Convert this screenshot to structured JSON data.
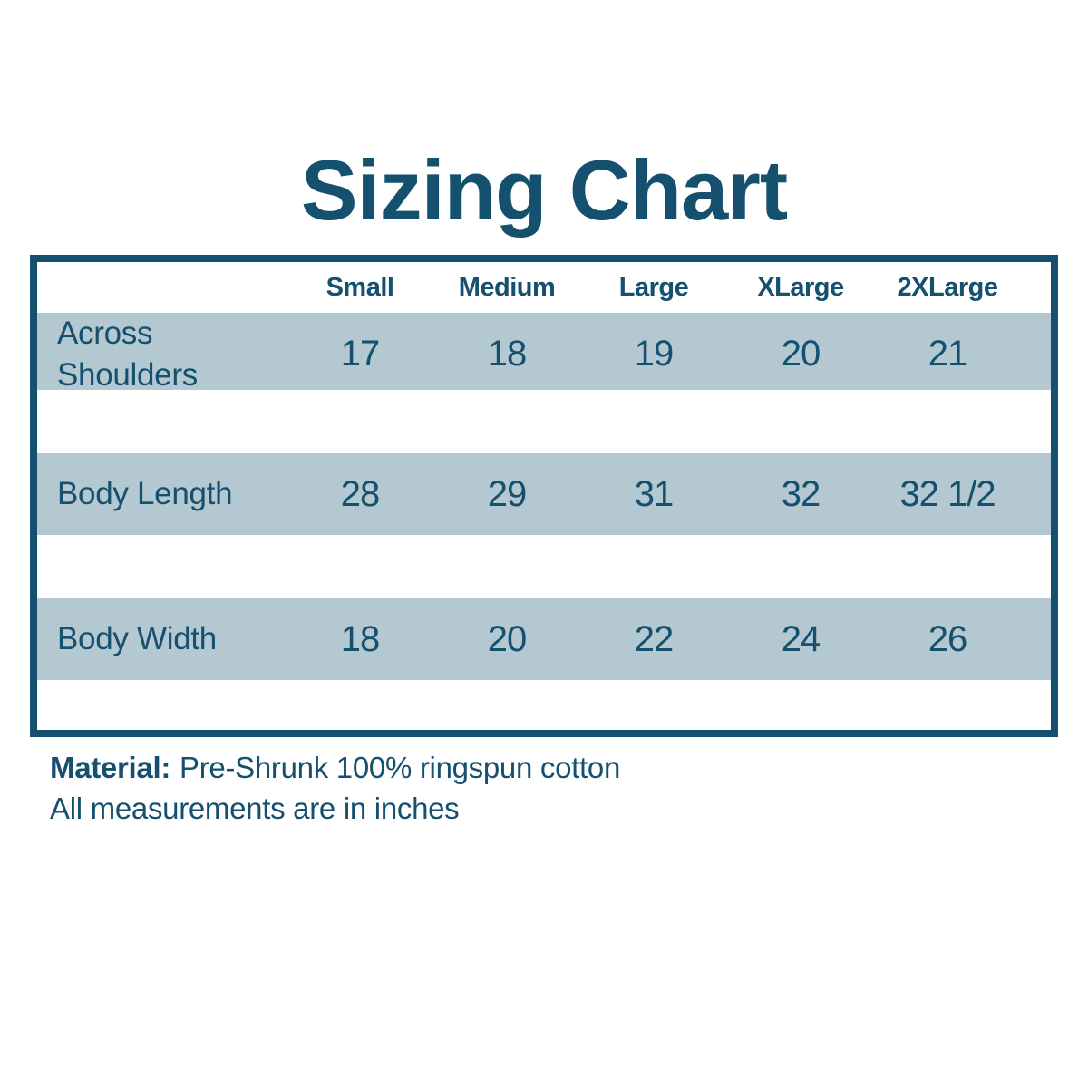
{
  "title": "Sizing Chart",
  "colors": {
    "accent_teal": "#15506E",
    "row_band_blue": "#B4C8D2",
    "background": "#FFFFFF"
  },
  "chart_data": {
    "type": "table",
    "title": "Sizing Chart",
    "columns": [
      "",
      "Small",
      "Medium",
      "Large",
      "XLarge",
      "2XLarge"
    ],
    "rows": [
      {
        "label": "Across Shoulders",
        "values": [
          "17",
          "18",
          "19",
          "20",
          "21"
        ]
      },
      {
        "label": "Body Length",
        "values": [
          "28",
          "29",
          "31",
          "32",
          "32 1/2"
        ]
      },
      {
        "label": "Body Width",
        "values": [
          "18",
          "20",
          "22",
          "24",
          "26"
        ]
      }
    ],
    "layout": "measurement labels in left column on light blue bands separated by white spacer rows; thick teal outer border; no inner gridlines"
  },
  "notes": {
    "material_label": "Material:",
    "material_value": "Pre-Shrunk 100% ringspun cotton",
    "measurements": "All measurements are in inches"
  }
}
